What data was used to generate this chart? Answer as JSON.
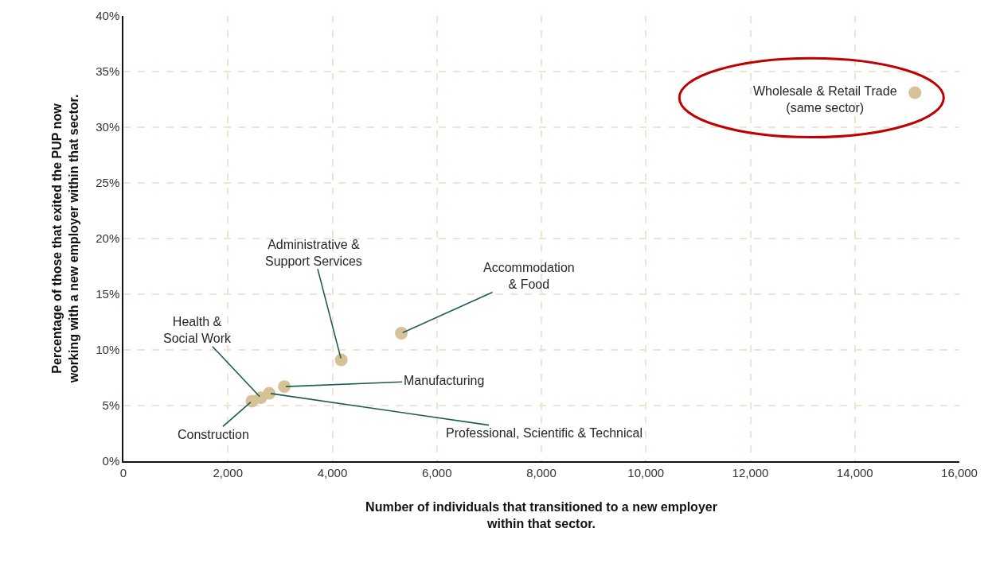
{
  "chart_data": {
    "type": "scatter",
    "xlabel": "Number of individuals that transitioned to a new employer\nwithin that sector.",
    "ylabel": "Percentage of those that exited the PUP now\nworking with a new employer within that sector.",
    "x": [
      15150,
      5320,
      4170,
      3080,
      2790,
      2630,
      2460
    ],
    "series": [
      {
        "color": "#d5c397",
        "values": [
          33.1,
          11.5,
          9.1,
          6.7,
          6.1,
          5.7,
          5.4
        ]
      }
    ],
    "annotations": [
      {
        "text": "Wholesale & Retail Trade\n(same sector)",
        "x": 15150,
        "y": 33.1
      },
      {
        "text": "Accommodation\n& Food",
        "x": 5320,
        "y": 11.5
      },
      {
        "text": "Administrative &\nSupport Services",
        "x": 4170,
        "y": 9.1
      },
      {
        "text": "Manufacturing",
        "x": 3080,
        "y": 6.7
      },
      {
        "text": "Professional, Scientific & Technical",
        "x": 2790,
        "y": 6.1
      },
      {
        "text": "Health &\nSocial Work",
        "x": 2630,
        "y": 5.7
      },
      {
        "text": "Construction",
        "x": 2460,
        "y": 5.4
      }
    ],
    "xlim": [
      0,
      16000
    ],
    "xticks": [
      {
        "value": 0,
        "label": "0"
      },
      {
        "value": 2000,
        "label": "2,000"
      },
      {
        "value": 4000,
        "label": "4,000"
      },
      {
        "value": 6000,
        "label": "6,000"
      },
      {
        "value": 8000,
        "label": "8,000"
      },
      {
        "value": 10000,
        "label": "10,000"
      },
      {
        "value": 12000,
        "label": "12,000"
      },
      {
        "value": 14000,
        "label": "14,000"
      },
      {
        "value": 16000,
        "label": "16,000"
      }
    ],
    "ylim": [
      0,
      40
    ],
    "yticks": [
      {
        "value": 0,
        "label": "0%"
      },
      {
        "value": 5,
        "label": "5%"
      },
      {
        "value": 10,
        "label": "10%"
      },
      {
        "value": 15,
        "label": "15%"
      },
      {
        "value": 20,
        "label": "20%"
      },
      {
        "value": 25,
        "label": "25%"
      },
      {
        "value": 30,
        "label": "30%"
      },
      {
        "value": 35,
        "label": "35%"
      },
      {
        "value": 40,
        "label": "40%"
      }
    ],
    "grid": true,
    "marker": "circle"
  }
}
